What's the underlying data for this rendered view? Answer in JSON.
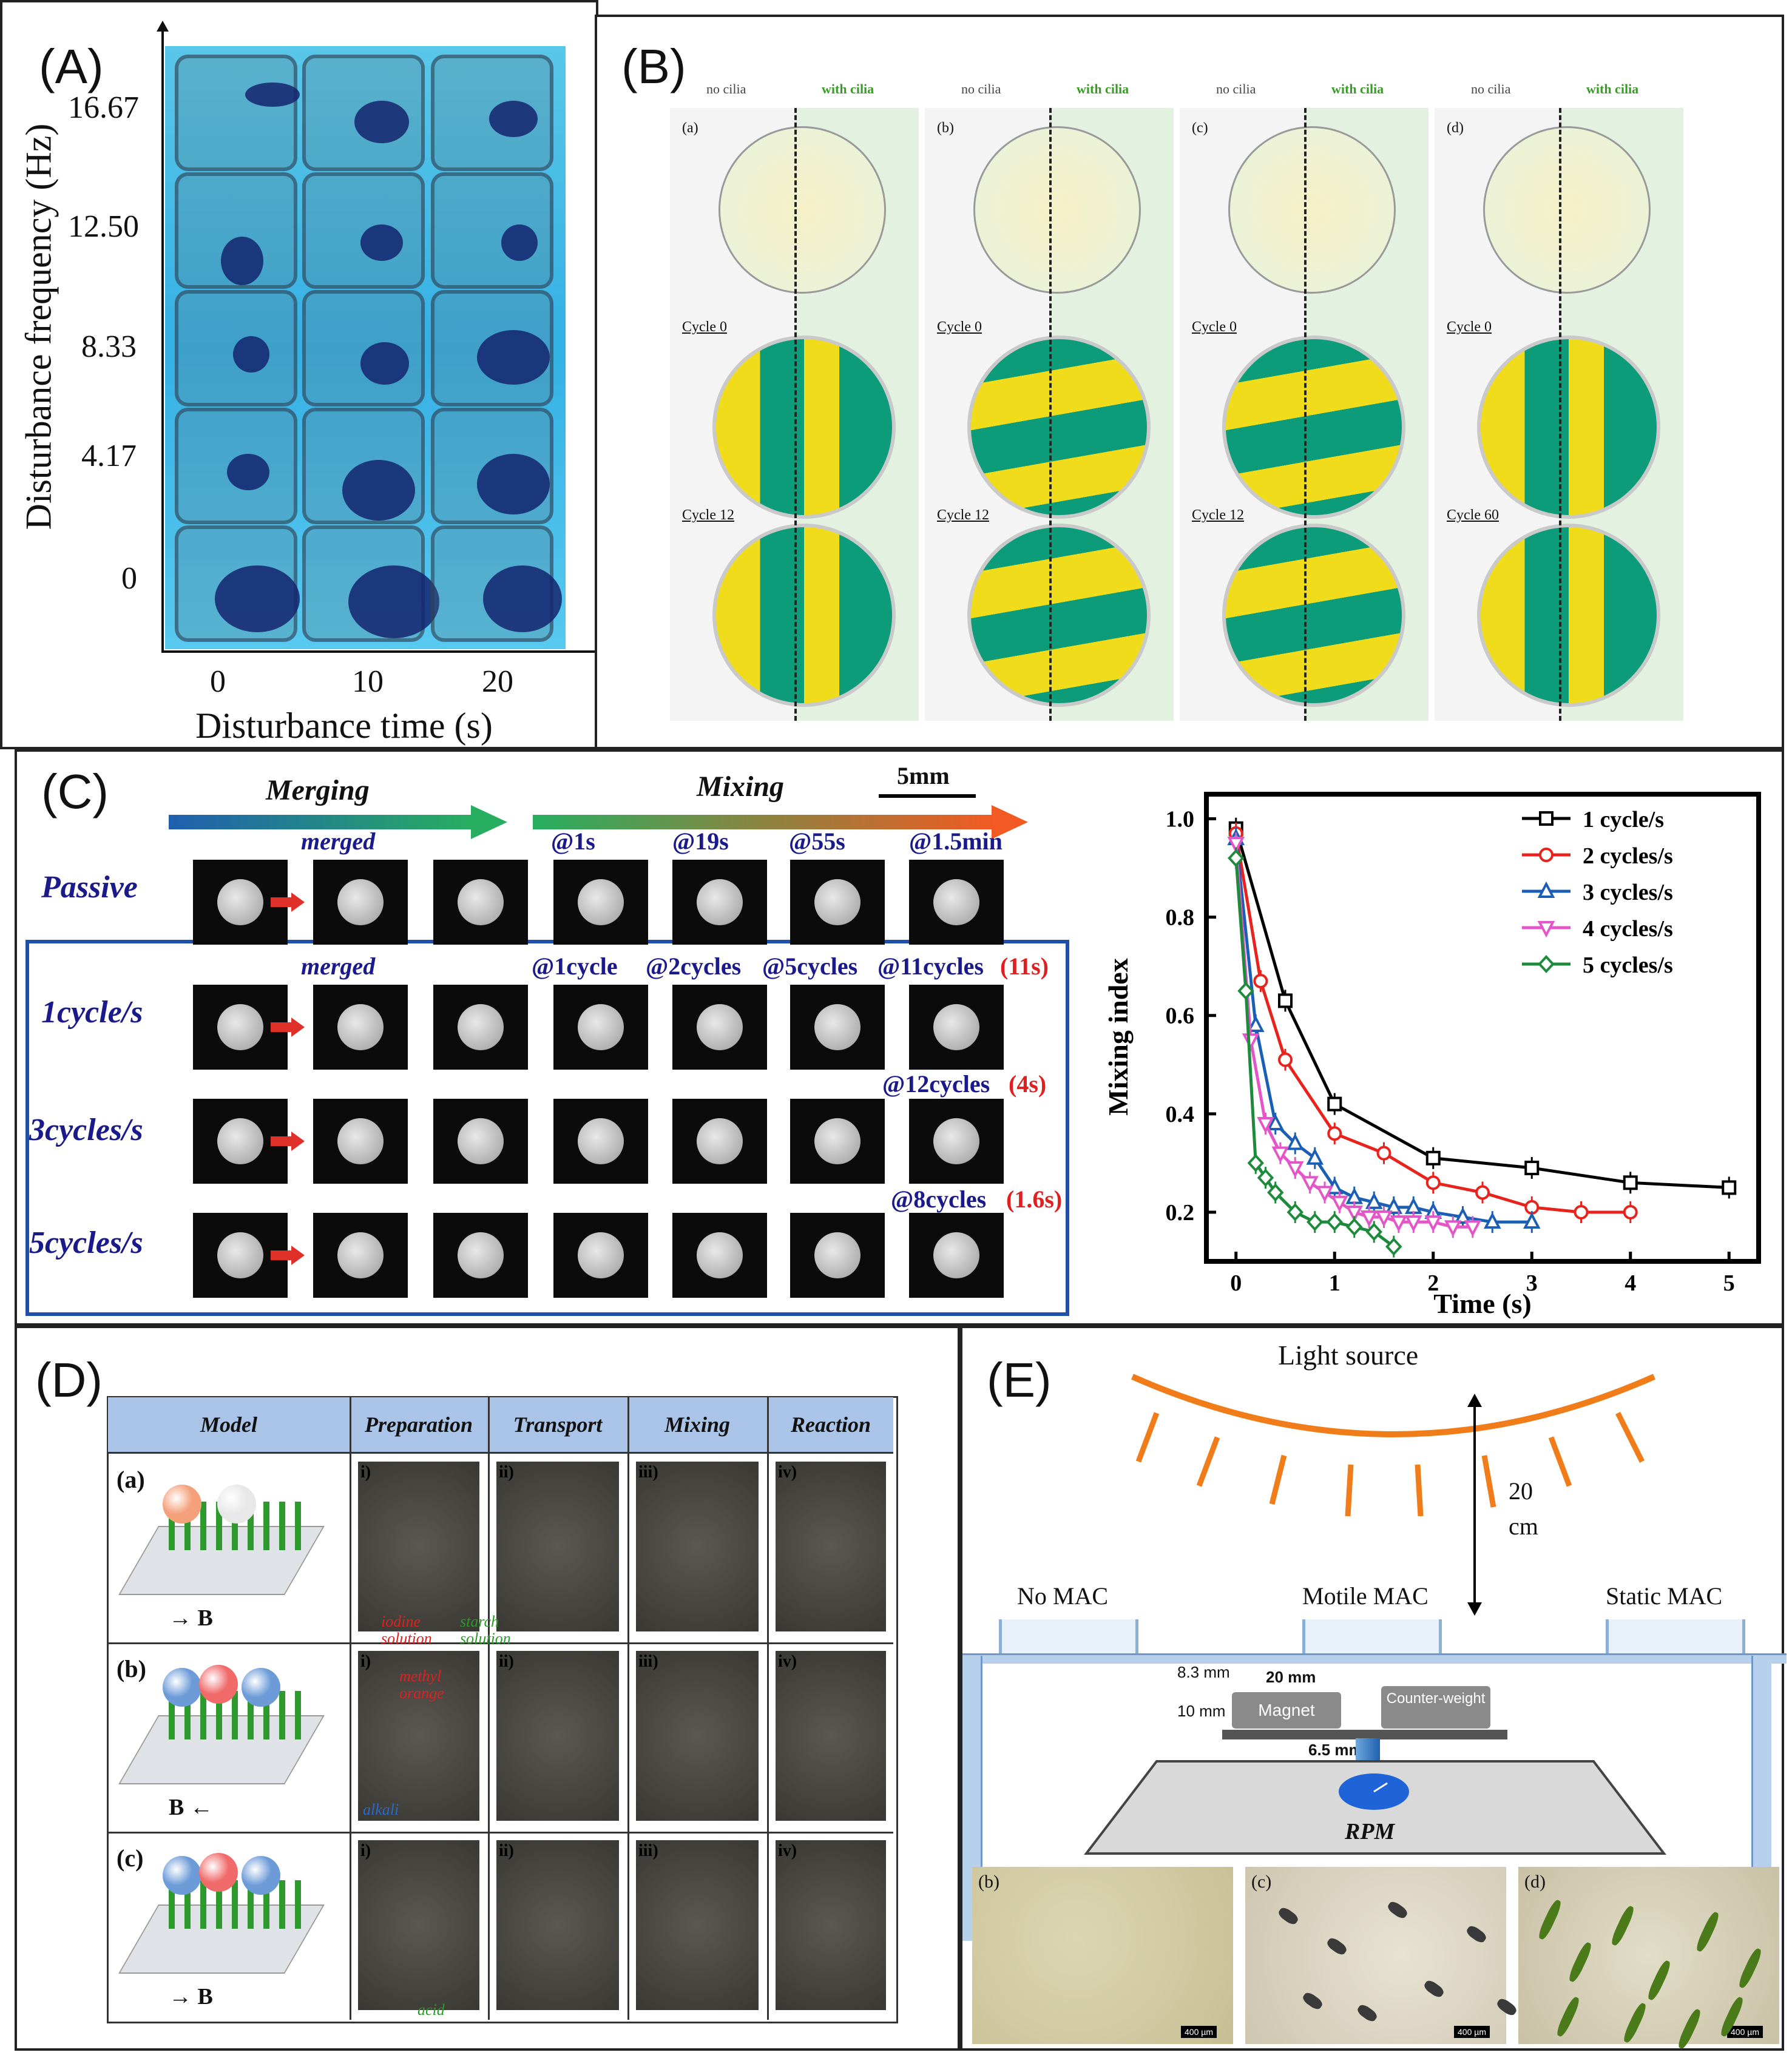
{
  "panelA": {
    "label": "(A)",
    "ylabel": "Disturbance frequency (Hz)",
    "xlabel": "Disturbance time (s)",
    "yticks": [
      "16.67",
      "12.50",
      "8.33",
      "4.17",
      "0"
    ],
    "xticks": [
      "0",
      "10",
      "20"
    ]
  },
  "panelB": {
    "label": "(B)",
    "groups": [
      {
        "letter": "(a)",
        "no": "no cilia",
        "with": "with cilia",
        "c1": "Cycle 0",
        "c2": "Cycle 12"
      },
      {
        "letter": "(b)",
        "no": "no cilia",
        "with": "with cilia",
        "c1": "Cycle 0",
        "c2": "Cycle 12"
      },
      {
        "letter": "(c)",
        "no": "no cilia",
        "with": "with cilia",
        "c1": "Cycle 0",
        "c2": "Cycle 12"
      },
      {
        "letter": "(d)",
        "no": "no cilia",
        "with": "with cilia",
        "c1": "Cycle 0",
        "c2": "Cycle 60"
      }
    ]
  },
  "panelC": {
    "label": "(C)",
    "merging": "Merging",
    "mixing": "Mixing",
    "scale": "5mm",
    "passive": {
      "row": "Passive",
      "merged": "merged",
      "t": [
        "@1s",
        "@19s",
        "@55s",
        "@1.5min"
      ]
    },
    "r1": {
      "row": "1cycle/s",
      "merged": "merged",
      "t": [
        "@1cycle",
        "@2cycles",
        "@5cycles",
        "@11cycles"
      ],
      "time": "(11s)"
    },
    "r3": {
      "row": "3cycles/s",
      "t4": "@12cycles",
      "time": "(4s)"
    },
    "r5": {
      "row": "5cycles/s",
      "t4": "@8cycles",
      "time": "(1.6s)"
    }
  },
  "chart_data": {
    "type": "line",
    "title": "",
    "xlabel": "Time (s)",
    "ylabel": "Mixing index",
    "xlim": [
      -0.3,
      5.3
    ],
    "ylim": [
      0.1,
      1.05
    ],
    "xticks": [
      "0",
      "1",
      "2",
      "3",
      "4",
      "5"
    ],
    "yticks": [
      "0.2",
      "0.4",
      "0.6",
      "0.8",
      "1.0"
    ],
    "legend_position": "top-right",
    "series": [
      {
        "name": "1 cycle/s",
        "color": "#000000",
        "marker": "square",
        "x": [
          0,
          0.5,
          1,
          2,
          3,
          4,
          5
        ],
        "y": [
          0.98,
          0.63,
          0.42,
          0.31,
          0.29,
          0.26,
          0.25
        ]
      },
      {
        "name": "2 cycles/s",
        "color": "#e8231d",
        "marker": "circle",
        "x": [
          0,
          0.25,
          0.5,
          1,
          1.5,
          2,
          2.5,
          3,
          3.5,
          4
        ],
        "y": [
          0.97,
          0.67,
          0.51,
          0.36,
          0.32,
          0.26,
          0.24,
          0.21,
          0.2,
          0.2
        ]
      },
      {
        "name": "3 cycles/s",
        "color": "#1b5fb5",
        "marker": "triangle-up",
        "x": [
          0,
          0.2,
          0.4,
          0.6,
          0.8,
          1,
          1.2,
          1.4,
          1.6,
          1.8,
          2,
          2.3,
          2.6,
          3
        ],
        "y": [
          0.96,
          0.58,
          0.38,
          0.34,
          0.31,
          0.25,
          0.23,
          0.22,
          0.21,
          0.21,
          0.2,
          0.19,
          0.18,
          0.18
        ]
      },
      {
        "name": "4 cycles/s",
        "color": "#e456c8",
        "marker": "triangle-down",
        "x": [
          0,
          0.15,
          0.3,
          0.45,
          0.6,
          0.75,
          0.9,
          1.05,
          1.2,
          1.35,
          1.5,
          1.65,
          1.8,
          2,
          2.2,
          2.4
        ],
        "y": [
          0.95,
          0.55,
          0.38,
          0.32,
          0.29,
          0.26,
          0.24,
          0.22,
          0.2,
          0.19,
          0.19,
          0.18,
          0.18,
          0.18,
          0.17,
          0.17
        ]
      },
      {
        "name": "5 cycles/s",
        "color": "#1e8a3c",
        "marker": "diamond",
        "x": [
          0,
          0.1,
          0.2,
          0.3,
          0.4,
          0.6,
          0.8,
          1.0,
          1.2,
          1.4,
          1.6
        ],
        "y": [
          0.92,
          0.65,
          0.3,
          0.27,
          0.24,
          0.2,
          0.18,
          0.18,
          0.17,
          0.16,
          0.13
        ]
      }
    ]
  },
  "panelD": {
    "label": "(D)",
    "headers": [
      "Model",
      "Preparation",
      "Transport",
      "Mixing",
      "Reaction"
    ],
    "rows": [
      {
        "label": "(a)",
        "field": "→ B",
        "steps": [
          "i)",
          "ii)",
          "iii)",
          "iv)"
        ]
      },
      {
        "label": "(b)",
        "field": "B ←",
        "steps": [
          "i)",
          "ii)",
          "iii)",
          "iv)"
        ]
      },
      {
        "label": "(c)",
        "field": "→ B",
        "steps": [
          "i)",
          "ii)",
          "iii)",
          "iv)"
        ]
      }
    ],
    "annotations": {
      "iodine": "iodine solution",
      "starch": "starch solution",
      "methyl": "methyl orange",
      "alkali": "alkali",
      "acid": "acid"
    }
  },
  "panelE": {
    "label": "(E)",
    "light": "Light source",
    "distance": "20 cm",
    "no_mac": "No MAC",
    "motile_mac": "Motile MAC",
    "static_mac": "Static MAC",
    "d83": "8.3 mm",
    "d20": "20 mm",
    "d10": "10 mm",
    "magnet": "Magnet",
    "counterweight": "Counter-weight",
    "d65": "6.5 mm",
    "rpm": "RPM",
    "photos": [
      "(b)",
      "(c)",
      "(d)"
    ],
    "scale": "400 µm"
  }
}
